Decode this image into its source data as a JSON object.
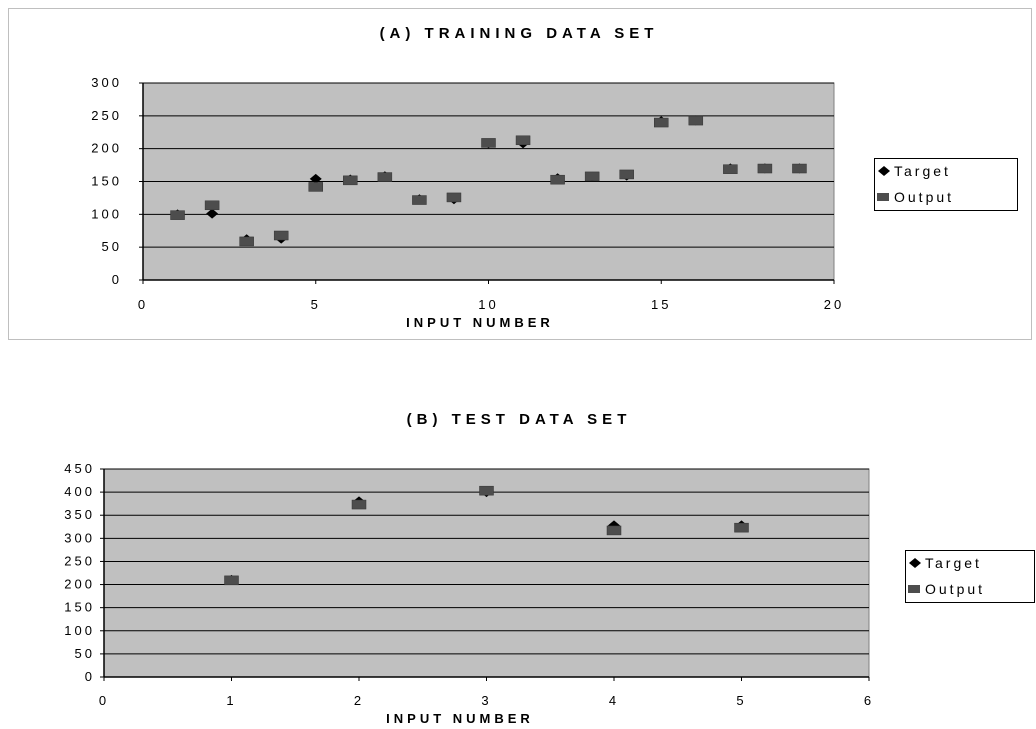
{
  "chart_data": [
    {
      "type": "scatter",
      "title": "(A) TRAINING DATA SET",
      "xlabel": "INPUT NUMBER",
      "ylabel": "",
      "xlim": [
        0,
        20
      ],
      "ylim": [
        0,
        300
      ],
      "x_ticks": [
        "0",
        "5",
        "10",
        "15",
        "20"
      ],
      "y_ticks": [
        "0",
        "50",
        "100",
        "150",
        "200",
        "250",
        "300"
      ],
      "grid": true,
      "legend": "right",
      "series": [
        {
          "name": "Target",
          "marker": "diamond",
          "color": "#000000",
          "x": [
            1,
            2,
            3,
            4,
            5,
            6,
            7,
            8,
            9,
            10,
            11,
            12,
            13,
            14,
            15,
            16,
            17,
            18,
            19
          ],
          "y": [
            100,
            101,
            62,
            63,
            154,
            153,
            158,
            123,
            123,
            208,
            208,
            155,
            157,
            159,
            242,
            243,
            170,
            170,
            170
          ]
        },
        {
          "name": "Output",
          "marker": "square",
          "color": "#4d4d4d",
          "x": [
            1,
            2,
            3,
            4,
            5,
            6,
            7,
            8,
            9,
            10,
            11,
            12,
            13,
            14,
            15,
            16,
            17,
            18,
            19
          ],
          "y": [
            98,
            113,
            58,
            67,
            141,
            151,
            156,
            121,
            125,
            208,
            212,
            152,
            157,
            160,
            239,
            242,
            168,
            169,
            169
          ]
        }
      ]
    },
    {
      "type": "scatter",
      "title": "(B) TEST DATA SET",
      "xlabel": "INPUT NUMBER",
      "ylabel": "",
      "xlim": [
        0,
        6
      ],
      "ylim": [
        0,
        450
      ],
      "x_ticks": [
        "0",
        "1",
        "2",
        "3",
        "4",
        "5",
        "6"
      ],
      "y_ticks": [
        "0",
        "50",
        "100",
        "150",
        "200",
        "250",
        "300",
        "350",
        "400",
        "450"
      ],
      "grid": true,
      "legend": "right",
      "series": [
        {
          "name": "Target",
          "marker": "diamond",
          "color": "#000000",
          "x": [
            1,
            2,
            3,
            4,
            5
          ],
          "y": [
            210,
            380,
            400,
            328,
            328
          ]
        },
        {
          "name": "Output",
          "marker": "square",
          "color": "#4d4d4d",
          "x": [
            1,
            2,
            3,
            4,
            5
          ],
          "y": [
            208,
            372,
            402,
            316,
            322
          ]
        }
      ]
    }
  ]
}
